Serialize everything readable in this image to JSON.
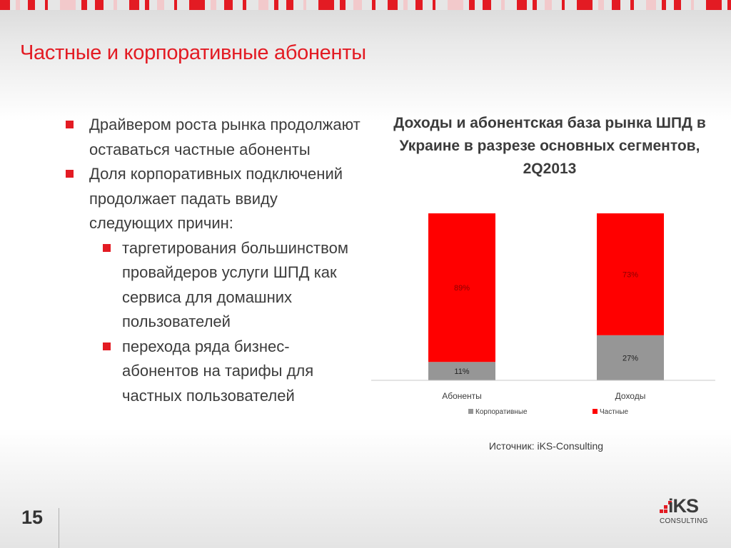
{
  "slide": {
    "title": "Частные и корпоративные абоненты",
    "page_number": "15",
    "source": "Источник: iKS-Consulting"
  },
  "bullets": [
    {
      "level": 1,
      "text": "Драйвером роста рынка продолжают оставаться частные абоненты"
    },
    {
      "level": 1,
      "text": "Доля корпоративных подключений продолжает падать ввиду следующих причин:"
    },
    {
      "level": 2,
      "text": "таргетирования большинством провайдеров услуги ШПД как сервиса для домашних пользователей"
    },
    {
      "level": 2,
      "text": "перехода ряда бизнес-абонентов на тарифы для частных пользователей"
    }
  ],
  "logo": {
    "brand": "iKS",
    "sub": "CONSULTING"
  },
  "colors": {
    "accent": "#e31b23",
    "gray_series": "#969696",
    "red_series": "#ff0000",
    "text": "#3c3c3c"
  },
  "chart_data": {
    "type": "bar",
    "stacked": true,
    "title": "Доходы и абонентская база рынка ШПД в Украине в разрезе основных сегментов, 2Q2013",
    "categories": [
      "Абоненты",
      "Доходы"
    ],
    "series": [
      {
        "name": "Корпоративные",
        "values": [
          11,
          27
        ],
        "labels": [
          "11%",
          "27%"
        ],
        "color": "#969696"
      },
      {
        "name": "Частные",
        "values": [
          89,
          73
        ],
        "labels": [
          "89%",
          "73%"
        ],
        "color": "#ff0000"
      }
    ],
    "ylim": [
      0,
      100
    ],
    "legend_position": "bottom",
    "grid": false
  }
}
